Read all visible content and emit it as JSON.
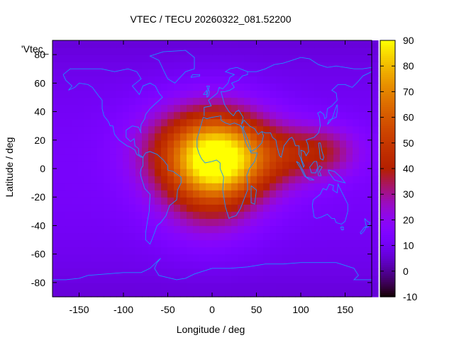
{
  "chart_data": {
    "type": "heatmap",
    "title": "VTEC / TECU 20260322_081.52200",
    "xlabel": "Longitude / deg",
    "ylabel": "Latitude / deg",
    "key_label": "'Vtec_",
    "xlim": [
      -180,
      180
    ],
    "ylim": [
      -90,
      90
    ],
    "xticks": [
      -150,
      -100,
      -50,
      0,
      50,
      100,
      150
    ],
    "yticks": [
      -80,
      -60,
      -40,
      -20,
      0,
      20,
      40,
      60,
      80
    ],
    "zlim": [
      -10,
      90
    ],
    "zticks": [
      -10,
      0,
      10,
      20,
      30,
      40,
      50,
      60,
      70,
      80,
      90
    ],
    "colormap": "gnuplot pm3d (black-purple-red-orange-yellow)",
    "background_level": 12,
    "features": [
      {
        "lon": 5,
        "lat": 10,
        "sx": 55,
        "sy": 32,
        "amp": 62
      },
      {
        "lon": -45,
        "lat": 12,
        "sx": 55,
        "sy": 30,
        "amp": 16
      },
      {
        "lon": 55,
        "lat": 8,
        "sx": 55,
        "sy": 25,
        "amp": 20
      },
      {
        "lon": 120,
        "lat": 12,
        "sx": 45,
        "sy": 18,
        "amp": 24
      },
      {
        "lon": -5,
        "lat": -25,
        "sx": 55,
        "sy": 30,
        "amp": 14
      },
      {
        "lon": 0,
        "lat": 0,
        "sx": 40,
        "sy": 22,
        "amp": 10
      }
    ],
    "grid": false,
    "coastlines": true
  }
}
